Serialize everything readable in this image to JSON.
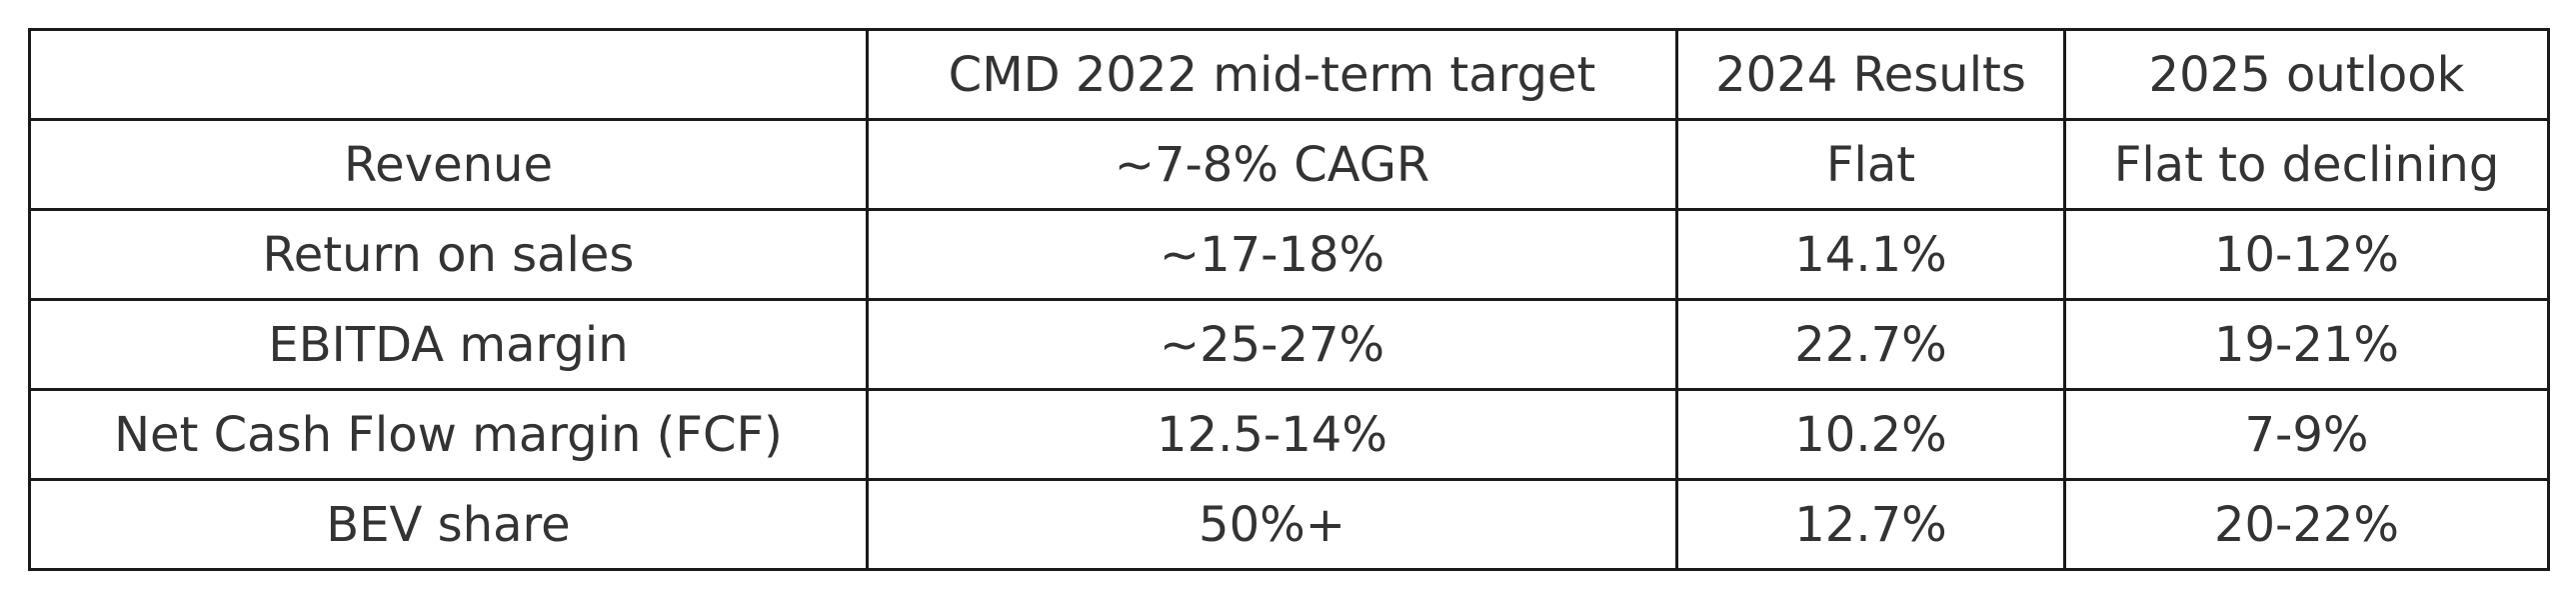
{
  "table": {
    "headers": [
      "",
      "CMD 2022 mid-term target",
      "2024 Results",
      "2025 outlook"
    ],
    "rows": [
      [
        "Revenue",
        "~7-8% CAGR",
        "Flat",
        "Flat to declining"
      ],
      [
        "Return on sales",
        "~17-18%",
        "14.1%",
        "10-12%"
      ],
      [
        "EBITDA margin",
        "~25-27%",
        "22.7%",
        "19-21%"
      ],
      [
        "Net Cash Flow margin (FCF)",
        "12.5-14%",
        "10.2%",
        "7-9%"
      ],
      [
        "BEV share",
        "50%+",
        "12.7%",
        "20-22%"
      ]
    ]
  }
}
